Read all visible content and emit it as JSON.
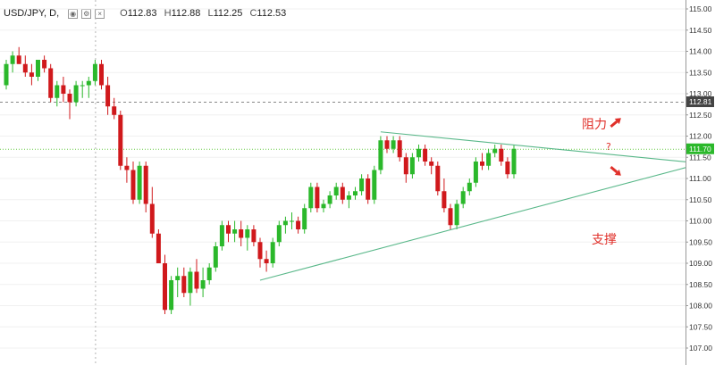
{
  "legend": {
    "symbol": "USD/JPY, D,",
    "open_label": "O",
    "open": "112.83",
    "high_label": "H",
    "high": "112.88",
    "low_label": "L",
    "low": "112.25",
    "close_label": "C",
    "close": "112.53"
  },
  "annotations": {
    "resistance": "阻力",
    "support": "支撑",
    "question": "?"
  },
  "colors": {
    "up": "#2bb82b",
    "down": "#d0191c",
    "trendline": "#5ab88a",
    "level_line": "#66cc44",
    "arrow": "#e0302a",
    "badge_current": "#2bb82b",
    "badge_close": "#444444"
  },
  "chart_data": {
    "type": "candlestick",
    "timeframe": "D",
    "y_ticks": [
      "115.00",
      "114.50",
      "114.00",
      "113.50",
      "113.00",
      "112.50",
      "112.00",
      "111.50",
      "111.00",
      "110.50",
      "110.00",
      "109.50",
      "109.00",
      "108.50",
      "108.00",
      "107.50",
      "107.00"
    ],
    "ylim": [
      106.75,
      115.1
    ],
    "price_badges": [
      {
        "id": "close-badge",
        "value": "112.81"
      },
      {
        "id": "current-badge",
        "value": "111.70"
      }
    ],
    "candles": [
      [
        113.2,
        113.8,
        113.1,
        113.7
      ],
      [
        113.7,
        114.0,
        113.5,
        113.9
      ],
      [
        113.9,
        114.1,
        113.7,
        113.7
      ],
      [
        113.7,
        113.9,
        113.4,
        113.5
      ],
      [
        113.5,
        113.7,
        113.2,
        113.4
      ],
      [
        113.4,
        113.8,
        113.3,
        113.8
      ],
      [
        113.8,
        113.9,
        113.5,
        113.6
      ],
      [
        113.6,
        113.7,
        112.8,
        112.9
      ],
      [
        112.9,
        113.3,
        112.7,
        113.2
      ],
      [
        113.2,
        113.4,
        112.8,
        113.0
      ],
      [
        113.0,
        113.1,
        112.4,
        112.8
      ],
      [
        112.8,
        113.3,
        112.7,
        113.2
      ],
      [
        113.2,
        113.3,
        112.9,
        113.2
      ],
      [
        113.2,
        113.4,
        112.9,
        113.3
      ],
      [
        113.3,
        113.8,
        113.2,
        113.7
      ],
      [
        113.7,
        113.8,
        113.1,
        113.2
      ],
      [
        113.2,
        113.4,
        112.5,
        112.7
      ],
      [
        112.7,
        112.9,
        112.4,
        112.5
      ],
      [
        112.5,
        112.6,
        111.2,
        111.3
      ],
      [
        111.3,
        111.5,
        110.9,
        111.2
      ],
      [
        111.2,
        111.4,
        110.4,
        110.5
      ],
      [
        110.5,
        111.4,
        110.4,
        111.3
      ],
      [
        111.3,
        111.4,
        110.2,
        110.4
      ],
      [
        110.4,
        110.8,
        109.6,
        109.7
      ],
      [
        109.7,
        109.8,
        109.0,
        109.0
      ],
      [
        109.0,
        109.2,
        107.8,
        107.9
      ],
      [
        107.9,
        108.7,
        107.8,
        108.6
      ],
      [
        108.6,
        108.9,
        108.2,
        108.7
      ],
      [
        108.7,
        108.9,
        108.2,
        108.3
      ],
      [
        108.3,
        108.9,
        108.0,
        108.8
      ],
      [
        108.8,
        109.1,
        108.3,
        108.4
      ],
      [
        108.4,
        108.9,
        108.2,
        108.6
      ],
      [
        108.6,
        109.0,
        108.5,
        108.9
      ],
      [
        108.9,
        109.5,
        108.8,
        109.4
      ],
      [
        109.4,
        110.0,
        109.3,
        109.9
      ],
      [
        109.9,
        110.0,
        109.5,
        109.7
      ],
      [
        109.7,
        110.0,
        109.5,
        109.8
      ],
      [
        109.8,
        110.0,
        109.4,
        109.6
      ],
      [
        109.6,
        109.9,
        109.3,
        109.8
      ],
      [
        109.8,
        109.9,
        109.4,
        109.5
      ],
      [
        109.5,
        109.6,
        108.9,
        109.1
      ],
      [
        109.1,
        109.3,
        108.8,
        109.0
      ],
      [
        109.0,
        109.6,
        108.9,
        109.5
      ],
      [
        109.5,
        110.0,
        109.4,
        109.9
      ],
      [
        109.9,
        110.1,
        109.7,
        110.0
      ],
      [
        110.0,
        110.2,
        109.8,
        110.0
      ],
      [
        110.0,
        110.1,
        109.7,
        109.8
      ],
      [
        109.8,
        110.4,
        109.7,
        110.3
      ],
      [
        110.3,
        110.9,
        110.2,
        110.8
      ],
      [
        110.8,
        110.9,
        110.2,
        110.3
      ],
      [
        110.3,
        110.5,
        110.2,
        110.4
      ],
      [
        110.4,
        110.7,
        110.3,
        110.6
      ],
      [
        110.6,
        110.9,
        110.5,
        110.8
      ],
      [
        110.8,
        110.9,
        110.4,
        110.5
      ],
      [
        110.5,
        110.7,
        110.3,
        110.6
      ],
      [
        110.6,
        110.8,
        110.5,
        110.7
      ],
      [
        110.7,
        111.1,
        110.6,
        111.0
      ],
      [
        111.0,
        111.1,
        110.4,
        110.5
      ],
      [
        110.5,
        111.3,
        110.4,
        111.2
      ],
      [
        111.2,
        112.0,
        111.1,
        111.9
      ],
      [
        111.9,
        112.0,
        111.6,
        111.7
      ],
      [
        111.7,
        112.0,
        111.6,
        111.9
      ],
      [
        111.9,
        112.0,
        111.4,
        111.5
      ],
      [
        111.5,
        111.6,
        110.9,
        111.1
      ],
      [
        111.1,
        111.6,
        111.0,
        111.5
      ],
      [
        111.5,
        111.8,
        111.4,
        111.7
      ],
      [
        111.7,
        111.8,
        111.3,
        111.4
      ],
      [
        111.4,
        111.5,
        111.1,
        111.3
      ],
      [
        111.3,
        111.4,
        110.6,
        110.7
      ],
      [
        110.7,
        111.0,
        110.2,
        110.3
      ],
      [
        110.3,
        110.4,
        109.8,
        109.9
      ],
      [
        109.9,
        110.5,
        109.8,
        110.4
      ],
      [
        110.4,
        110.8,
        110.3,
        110.7
      ],
      [
        110.7,
        111.0,
        110.6,
        110.9
      ],
      [
        110.9,
        111.5,
        110.8,
        111.4
      ],
      [
        111.4,
        111.6,
        111.2,
        111.3
      ],
      [
        111.3,
        111.7,
        111.2,
        111.6
      ],
      [
        111.6,
        111.8,
        111.5,
        111.7
      ],
      [
        111.7,
        111.8,
        111.3,
        111.4
      ],
      [
        111.4,
        111.5,
        111.0,
        111.1
      ],
      [
        111.1,
        111.8,
        111.0,
        111.7
      ]
    ],
    "trendlines": [
      {
        "name": "resistance",
        "from": {
          "bar": 59,
          "price": 112.1
        },
        "to": {
          "bar": 93,
          "price": 111.6
        }
      },
      {
        "name": "support",
        "from": {
          "bar": 40,
          "price": 108.6
        },
        "to": {
          "bar": 93,
          "price": 110.7
        }
      }
    ],
    "horizontal_lines": [
      {
        "name": "current-price-line",
        "price": 111.7,
        "style": "dotted",
        "color": "#66cc44"
      },
      {
        "name": "prev-close-line",
        "price": 112.81,
        "style": "dashed",
        "color": "#888888"
      }
    ],
    "crosshair_bar": 14
  }
}
